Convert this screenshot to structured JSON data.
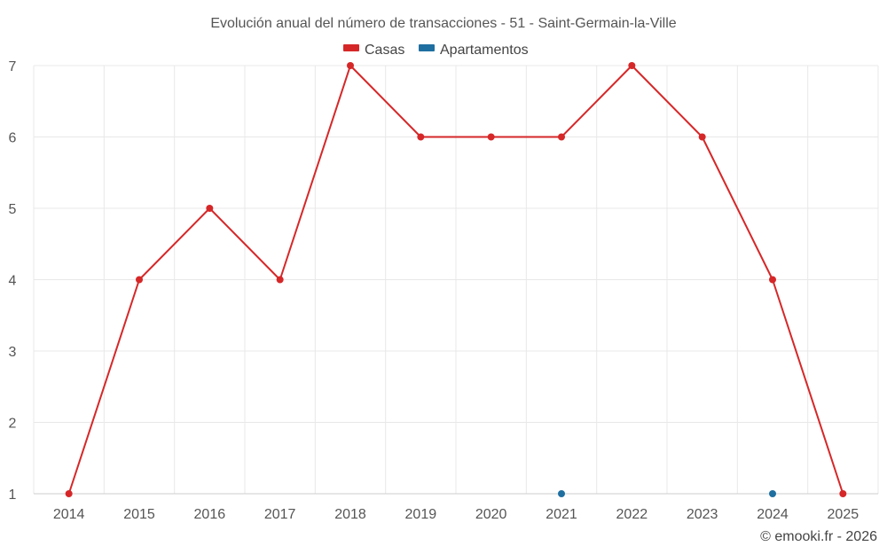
{
  "chart_data": {
    "type": "line",
    "title": "Evolución anual del número de transacciones - 51 - Saint-Germain-la-Ville",
    "xlabel": "",
    "ylabel": "",
    "categories": [
      "2014",
      "2015",
      "2016",
      "2017",
      "2018",
      "2019",
      "2020",
      "2021",
      "2022",
      "2023",
      "2024",
      "2025"
    ],
    "ylim": [
      1,
      7
    ],
    "yticks": [
      "1",
      "2",
      "3",
      "4",
      "5",
      "6",
      "7"
    ],
    "grid": true,
    "legend_position": "top",
    "series": [
      {
        "name": "Casas",
        "color": "#d62728",
        "values": [
          1,
          4,
          5,
          4,
          7,
          6,
          6,
          6,
          7,
          6,
          4,
          1
        ]
      },
      {
        "name": "Apartamentos",
        "color": "#1f6fa0",
        "values": [
          null,
          null,
          null,
          null,
          null,
          null,
          null,
          1,
          null,
          null,
          1,
          null
        ]
      }
    ]
  },
  "credit": "© emooki.fr - 2026"
}
